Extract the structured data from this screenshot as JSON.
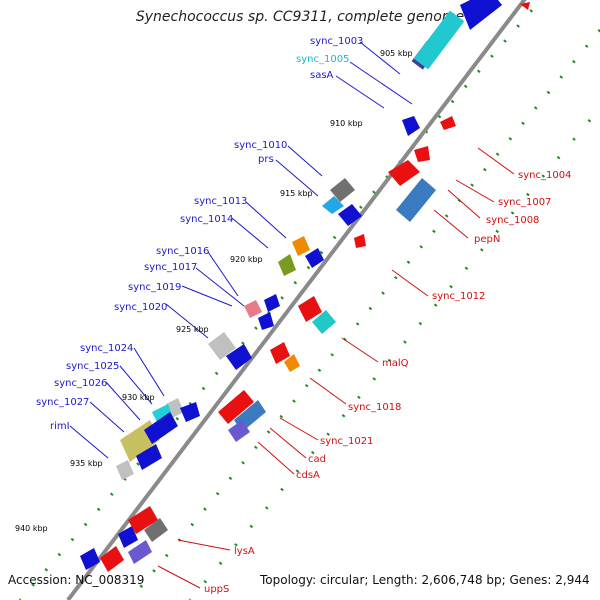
{
  "title": "Synechococcus sp. CC9311, complete genome",
  "accession": "Accession: NC_008319",
  "topology": "Topology: circular; Length: 2,606,748 bp; Genes: 2,944",
  "colors": {
    "backbone": "#8a8a8a",
    "forward_label": "#1a1ad0",
    "reverse_label": "#d01010",
    "highlight_label": "#19b8d6",
    "tick_dots": "#1e8c1e"
  },
  "ticks": [
    "905 kbp",
    "910 kbp",
    "915 kbp",
    "920 kbp",
    "925 kbp",
    "930 kbp",
    "935 kbp",
    "940 kbp"
  ],
  "forward_labels": [
    "sync_1003",
    "sync_1005",
    "sasA",
    "sync_1010",
    "prs",
    "sync_1013",
    "sync_1014",
    "sync_1016",
    "sync_1017",
    "sync_1019",
    "sync_1020",
    "sync_1024",
    "sync_1025",
    "sync_1026",
    "sync_1027",
    "rimI"
  ],
  "reverse_labels": [
    "sync_1004",
    "sync_1007",
    "sync_1008",
    "pepN",
    "sync_1012",
    "malQ",
    "sync_1018",
    "sync_1021",
    "cad",
    "cdsA",
    "lysA",
    "uppS"
  ]
}
